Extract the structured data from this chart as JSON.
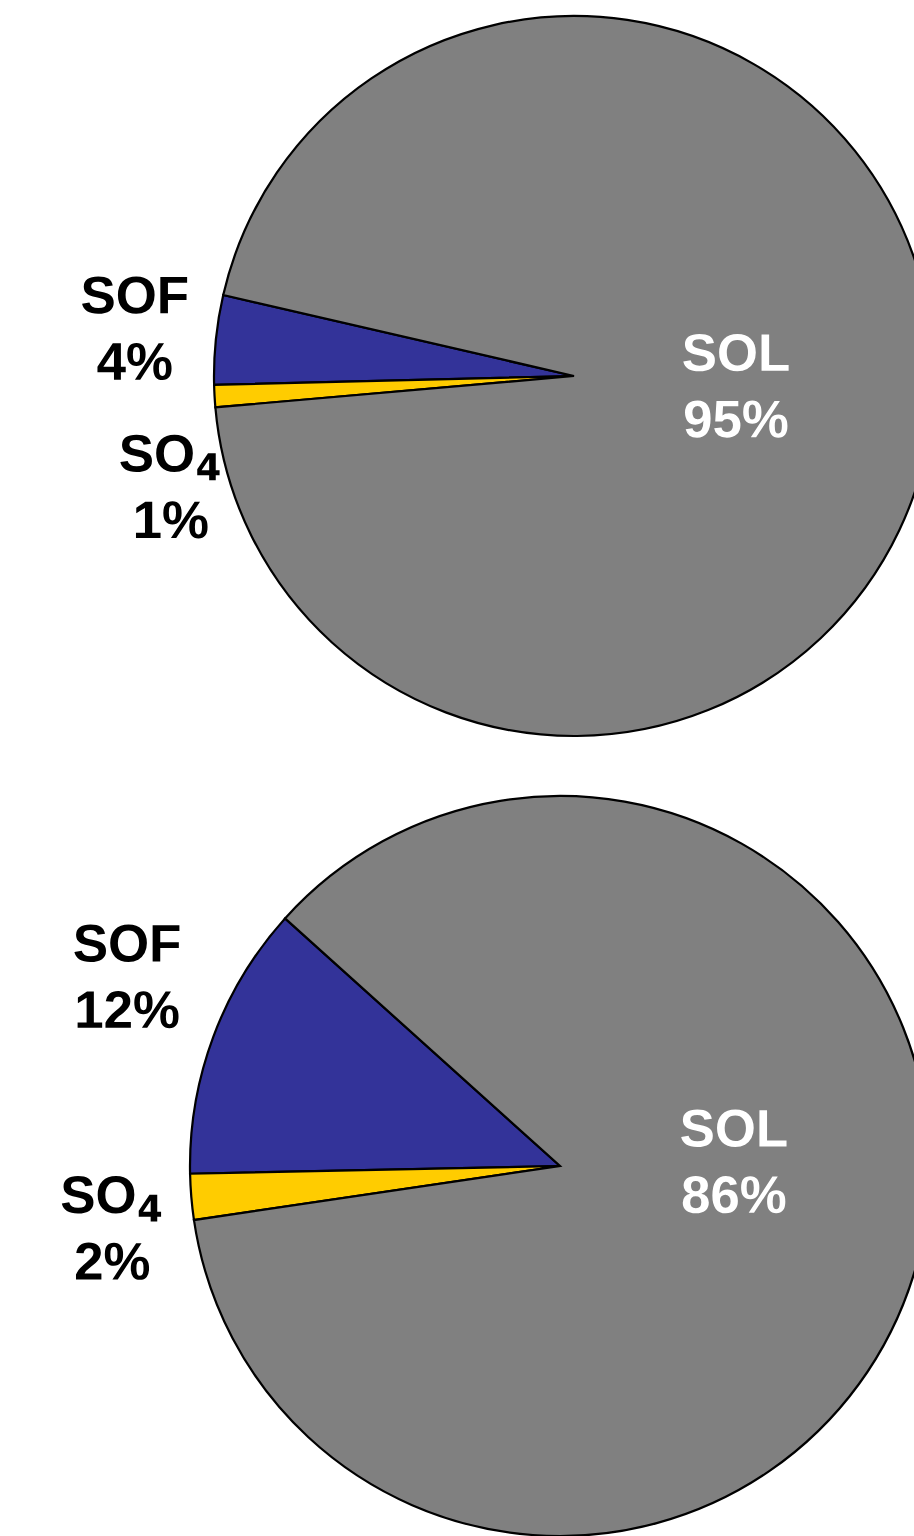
{
  "chart_data": [
    {
      "type": "pie",
      "categories": [
        "SOF",
        "SO$_{4}$",
        "SOL"
      ],
      "values": [
        4,
        1,
        95
      ],
      "value_labels": [
        "4%",
        "1%",
        "95%"
      ],
      "colors": [
        "#333399",
        "#ffcc00",
        "#808080"
      ]
    },
    {
      "type": "pie",
      "categories": [
        "SOF",
        "SO$_{4}$",
        "SOL"
      ],
      "values": [
        12,
        2,
        86
      ],
      "value_labels": [
        "12%",
        "2%",
        "86%"
      ],
      "colors": [
        "#333399",
        "#ffcc00",
        "#808080"
      ]
    }
  ]
}
